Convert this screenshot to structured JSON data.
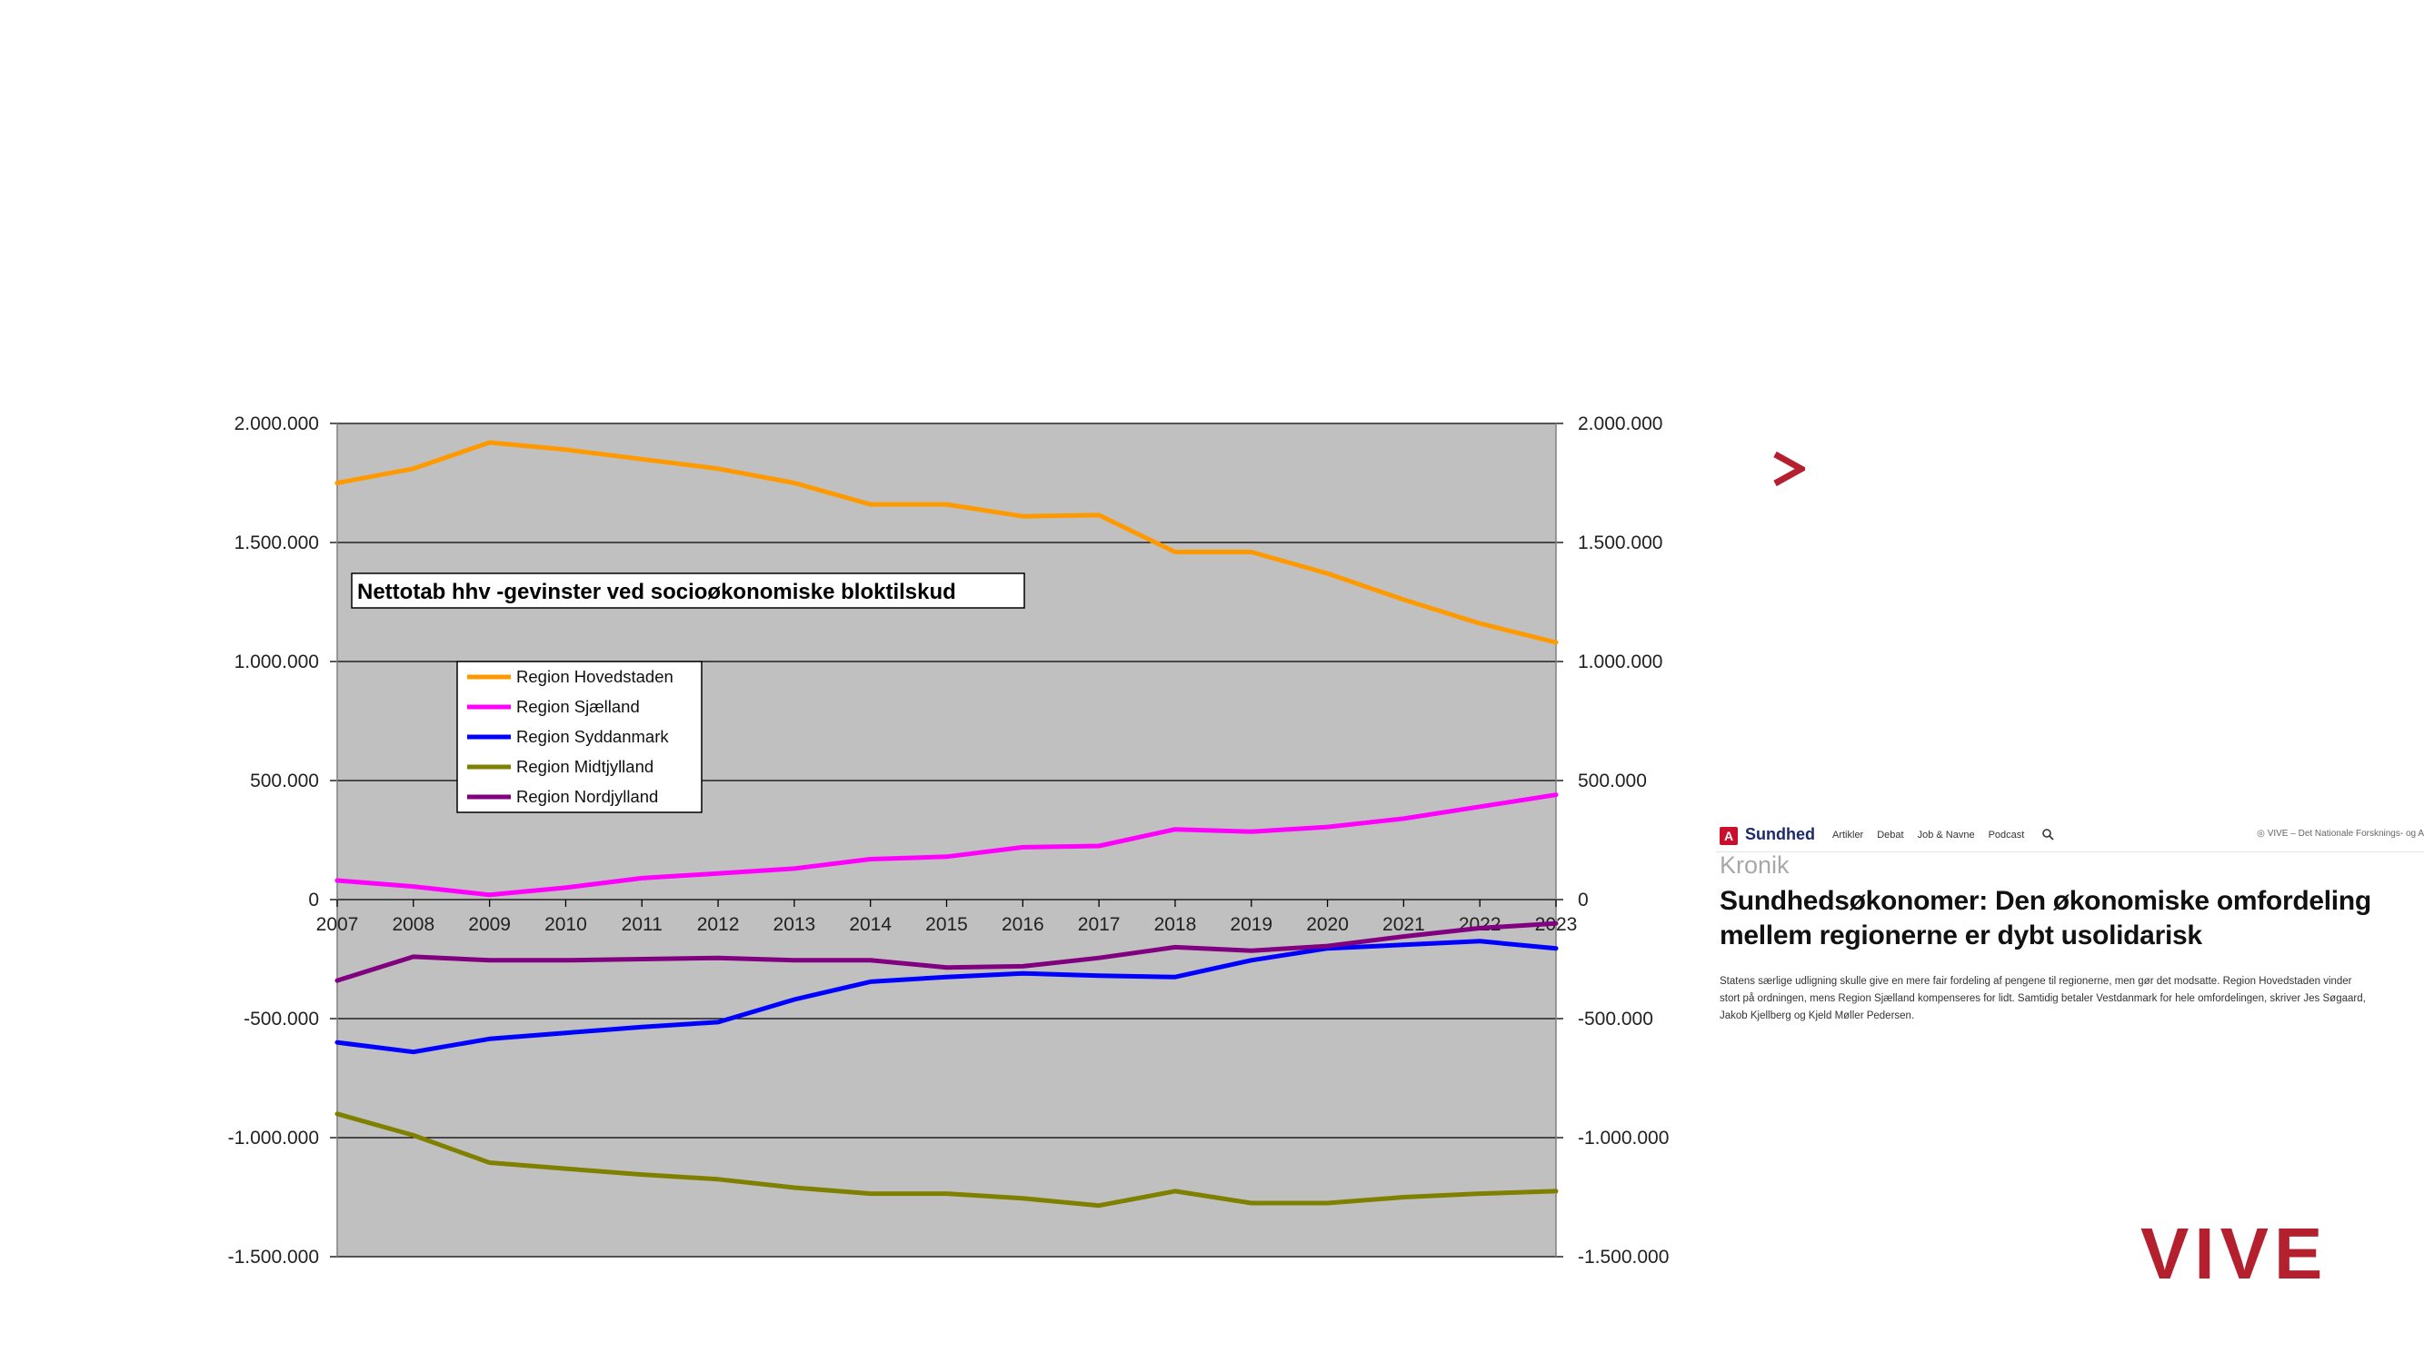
{
  "chart_data": {
    "type": "line",
    "title": "Nettotab hhv -gevinster ved socioøkonomiske bloktilskud",
    "xlabel": "",
    "ylabel": "",
    "x": [
      2007,
      2008,
      2009,
      2010,
      2011,
      2012,
      2013,
      2014,
      2015,
      2016,
      2017,
      2018,
      2019,
      2020,
      2021,
      2022,
      2023
    ],
    "ylim": [
      -1500000,
      2000000
    ],
    "yticks": [
      2000000,
      1500000,
      1000000,
      500000,
      0,
      -500000,
      -1000000,
      -1500000
    ],
    "ytick_labels": [
      "2.000.000",
      "1.500.000",
      "1.000.000",
      "500.000",
      "0",
      "-500.000",
      "-1.000.000",
      "-1.500.000"
    ],
    "grid": true,
    "legend_position": "upper-left",
    "series": [
      {
        "name": "Region Hovedstaden",
        "color": "#ff9900",
        "values": [
          1750000,
          1810000,
          1920000,
          1890000,
          1850000,
          1810000,
          1750000,
          1660000,
          1660000,
          1610000,
          1615000,
          1460000,
          1460000,
          1370000,
          1260000,
          1160000,
          1080000
        ]
      },
      {
        "name": "Region Sjælland",
        "color": "#ff00ff",
        "values": [
          80000,
          55000,
          20000,
          50000,
          90000,
          110000,
          130000,
          170000,
          180000,
          220000,
          225000,
          295000,
          285000,
          305000,
          340000,
          390000,
          440000
        ]
      },
      {
        "name": "Region Syddanmark",
        "color": "#0000ff",
        "values": [
          -600000,
          -640000,
          -585000,
          -560000,
          -535000,
          -515000,
          -420000,
          -345000,
          -325000,
          -310000,
          -320000,
          -325000,
          -255000,
          -205000,
          -190000,
          -175000,
          -205000
        ]
      },
      {
        "name": "Region Midtjylland",
        "color": "#808000",
        "values": [
          -900000,
          -990000,
          -1105000,
          -1130000,
          -1155000,
          -1175000,
          -1210000,
          -1235000,
          -1235000,
          -1255000,
          -1285000,
          -1225000,
          -1275000,
          -1275000,
          -1250000,
          -1235000,
          -1225000
        ]
      },
      {
        "name": "Region Nordjylland",
        "color": "#800080",
        "values": [
          -340000,
          -240000,
          -255000,
          -255000,
          -250000,
          -245000,
          -255000,
          -255000,
          -285000,
          -280000,
          -245000,
          -200000,
          -215000,
          -195000,
          -155000,
          -120000,
          -100000
        ]
      }
    ]
  },
  "article": {
    "brand": "Sundhed",
    "brand_icon": "A",
    "nav": [
      "Artikler",
      "Debat",
      "Job & Navne",
      "Podcast"
    ],
    "site_right": "VIVE – Det Nationale Forsknings- og A",
    "kicker": "Kronik",
    "headline": "Sundhedsøkonomer: Den økonomiske omfordeling mellem regionerne er dybt usolidarisk",
    "lead": "Statens særlige udligning skulle give en mere fair fordeling af pengene til regionerne, men gør det modsatte. Region Hovedstaden vinder stort på ordningen, mens Region Sjælland kompenseres for lidt. Samtidig betaler Vestdanmark for hele omfordelingen, skriver Jes Søgaard, Jakob Kjellberg og Kjeld Møller Pedersen."
  },
  "logo": {
    "text": "VIVE",
    "color": "#b5202e"
  }
}
